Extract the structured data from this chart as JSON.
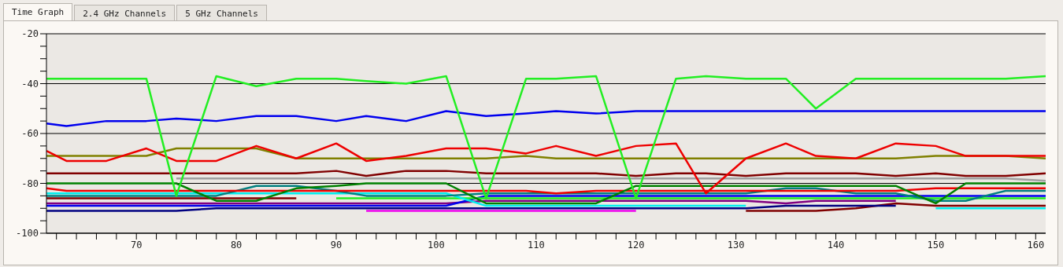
{
  "chart_data": {
    "type": "line",
    "annotations": [
      "Time Graph",
      "2.4 GHz Channels",
      "5 GHz Channels"
    ],
    "x": [
      61,
      63,
      67,
      71,
      74,
      78,
      82,
      86,
      90,
      93,
      97,
      101,
      105,
      109,
      112,
      116,
      120,
      124,
      127,
      131,
      135,
      138,
      142,
      146,
      150,
      153,
      157,
      161
    ],
    "xlim": [
      61,
      161
    ],
    "xticks": [
      {
        "value": 62,
        "label": null
      },
      {
        "value": 64,
        "label": null
      },
      {
        "value": 66,
        "label": null
      },
      {
        "value": 68,
        "label": null
      },
      70,
      {
        "value": 72,
        "label": null
      },
      {
        "value": 74,
        "label": null
      },
      {
        "value": 76,
        "label": null
      },
      {
        "value": 78,
        "label": null
      },
      80,
      {
        "value": 82,
        "label": null
      },
      {
        "value": 84,
        "label": null
      },
      {
        "value": 86,
        "label": null
      },
      {
        "value": 88,
        "label": null
      },
      90,
      {
        "value": 92,
        "label": null
      },
      {
        "value": 94,
        "label": null
      },
      {
        "value": 96,
        "label": null
      },
      {
        "value": 98,
        "label": null
      },
      100,
      {
        "value": 102,
        "label": null
      },
      {
        "value": 104,
        "label": null
      },
      {
        "value": 106,
        "label": null
      },
      {
        "value": 108,
        "label": null
      },
      110,
      {
        "value": 112,
        "label": null
      },
      {
        "value": 114,
        "label": null
      },
      {
        "value": 116,
        "label": null
      },
      {
        "value": 118,
        "label": null
      },
      120,
      {
        "value": 122,
        "label": null
      },
      {
        "value": 124,
        "label": null
      },
      {
        "value": 126,
        "label": null
      },
      {
        "value": 128,
        "label": null
      },
      130,
      {
        "value": 132,
        "label": null
      },
      {
        "value": 134,
        "label": null
      },
      {
        "value": 136,
        "label": null
      },
      {
        "value": 138,
        "label": null
      },
      140,
      {
        "value": 142,
        "label": null
      },
      {
        "value": 144,
        "label": null
      },
      {
        "value": 146,
        "label": null
      },
      {
        "value": 148,
        "label": null
      },
      150,
      {
        "value": 152,
        "label": null
      },
      {
        "value": 154,
        "label": null
      },
      {
        "value": 156,
        "label": null
      },
      {
        "value": 158,
        "label": null
      },
      160
    ],
    "ylim": [
      -100,
      -20
    ],
    "yticks": [
      -100,
      {
        "value": -95,
        "label": null
      },
      {
        "value": -90,
        "label": null
      },
      {
        "value": -85,
        "label": null
      },
      -80,
      {
        "value": -75,
        "label": null
      },
      {
        "value": -70,
        "label": null
      },
      {
        "value": -65,
        "label": null
      },
      -60,
      {
        "value": -55,
        "label": null
      },
      {
        "value": -50,
        "label": null
      },
      {
        "value": -45,
        "label": null
      },
      -40,
      {
        "value": -35,
        "label": null
      },
      {
        "value": -30,
        "label": null
      },
      {
        "value": -25,
        "label": null
      },
      -20
    ],
    "grid": "y",
    "series": [
      {
        "color": "#800000",
        "values": [
          -86,
          -86,
          -86,
          -86,
          -86,
          -86,
          -86,
          -86,
          null,
          null,
          null,
          null,
          null,
          null,
          null,
          null,
          null,
          null,
          null,
          -91,
          -91,
          -91,
          -90,
          -88,
          -89,
          -89,
          -89,
          -89
        ]
      },
      {
        "color": "#000080",
        "values": [
          -91,
          -91,
          -91,
          -91,
          -91,
          -90,
          -90,
          -90,
          -90,
          -90,
          -90,
          -90,
          -90,
          -90,
          -90,
          -90,
          -90,
          -90,
          -90,
          -90,
          -89,
          -89,
          -89,
          -89,
          null,
          null,
          null,
          null
        ]
      },
      {
        "color": "#ee00ee",
        "values": [
          null,
          null,
          null,
          null,
          null,
          null,
          null,
          null,
          null,
          -91,
          -91,
          -91,
          -91,
          -91,
          -91,
          -91,
          -91,
          null,
          null,
          null,
          null,
          null,
          null,
          null,
          null,
          null,
          null,
          null
        ]
      },
      {
        "color": "#800080",
        "values": [
          -88,
          -88,
          -88,
          -88,
          -88,
          -88,
          -88,
          -88,
          -88,
          -88,
          -88,
          -88,
          -87,
          -87,
          -87,
          -87,
          -87,
          -87,
          -87,
          -87,
          -88,
          -87,
          -87,
          -87,
          null,
          null,
          null,
          null
        ]
      },
      {
        "color": "#0000ee",
        "values": [
          -89,
          -89,
          -89,
          -89,
          -89,
          -89,
          -89,
          -89,
          -89,
          -89,
          -89,
          -89,
          -85,
          -85,
          -85,
          -85,
          -85,
          -85,
          -85,
          -85,
          -85,
          -85,
          -85,
          -85,
          -85,
          -85,
          -85,
          -85
        ]
      },
      {
        "color": "#22ee22",
        "values": [
          null,
          null,
          null,
          null,
          null,
          null,
          null,
          null,
          -86,
          -86,
          -86,
          -86,
          -86,
          -86,
          -86,
          -86,
          -86,
          -86,
          -86,
          -86,
          -86,
          -86,
          -86,
          -86,
          -86,
          -86,
          -86,
          -86
        ]
      },
      {
        "color": "#00eeee",
        "values": [
          -84,
          -84,
          -84,
          -84,
          -84,
          -84,
          -84,
          -84,
          -84,
          -84,
          -84,
          -84,
          -89,
          -89,
          -89,
          -89,
          -89,
          -89,
          -89,
          -89,
          null,
          null,
          null,
          null,
          -90,
          -90,
          -90,
          -90
        ]
      },
      {
        "color": "#008080",
        "values": [
          -85,
          -85,
          -85,
          -85,
          -85,
          -85,
          -81,
          -81,
          -83,
          -85,
          -85,
          -85,
          -84,
          -84,
          -84,
          -84,
          -84,
          -84,
          -84,
          -84,
          -82,
          -82,
          -84,
          -84,
          -87,
          -87,
          -83,
          -83
        ]
      },
      {
        "color": "#ee0000",
        "values": [
          -82,
          -83,
          -83,
          -83,
          -83,
          -83,
          -83,
          -83,
          -83,
          -83,
          -83,
          -83,
          -83,
          -83,
          -84,
          -83,
          -83,
          -83,
          -83,
          -83,
          -83,
          -83,
          -83,
          -83,
          -82,
          -82,
          -82,
          -82
        ]
      },
      {
        "color": "#a0a0a0",
        "values": [
          null,
          null,
          null,
          null,
          -78,
          -78,
          -78,
          -78,
          -78,
          -78,
          -78,
          -78,
          -78,
          -78,
          -78,
          -78,
          -78,
          -78,
          -78,
          -78,
          -78,
          -78,
          -78,
          -78,
          -78,
          -78,
          -78,
          -79
        ]
      },
      {
        "color": "#008000",
        "values": [
          -80,
          -80,
          -80,
          -80,
          -80,
          -87,
          -87,
          -82,
          -81,
          -80,
          -80,
          -80,
          -88,
          -88,
          -88,
          -88,
          -81,
          -81,
          -81,
          -81,
          -81,
          -81,
          -81,
          -81,
          -88,
          -80,
          -80,
          -80
        ]
      },
      {
        "color": "#800000",
        "values": [
          -76,
          -76,
          -76,
          -76,
          -76,
          -76,
          -76,
          -76,
          -75,
          -77,
          -75,
          -75,
          -76,
          -76,
          -76,
          -76,
          -77,
          -76,
          -76,
          -77,
          -76,
          -76,
          -76,
          -77,
          -76,
          -77,
          -77,
          -76
        ]
      },
      {
        "color": "#808000",
        "values": [
          -69,
          -69,
          -69,
          -69,
          -66,
          -66,
          -66,
          -70,
          -70,
          -70,
          -70,
          -70,
          -70,
          -69,
          -70,
          -70,
          -70,
          -70,
          -70,
          -70,
          -70,
          -70,
          -70,
          -70,
          -69,
          -69,
          -69,
          -70
        ]
      },
      {
        "color": "#ee0000",
        "values": [
          -67,
          -71,
          -71,
          -66,
          -71,
          -71,
          -65,
          -70,
          -64,
          -71,
          -69,
          -66,
          -66,
          -68,
          -65,
          -69,
          -65,
          -64,
          -84,
          -70,
          -64,
          -69,
          -70,
          -64,
          -65,
          -69,
          -69,
          -69
        ]
      },
      {
        "color": "#0000ee",
        "values": [
          -56,
          -57,
          -55,
          -55,
          -54,
          -55,
          -53,
          -53,
          -55,
          -53,
          -55,
          -51,
          -53,
          -52,
          -51,
          -52,
          -51,
          -51,
          -51,
          -51,
          -51,
          -51,
          -51,
          -51,
          -51,
          -51,
          -51,
          -51
        ]
      },
      {
        "color": "#22ee22",
        "values": [
          -38,
          -38,
          -38,
          -38,
          -85,
          -37,
          -41,
          -38,
          -38,
          -39,
          -40,
          -37,
          -86,
          -38,
          -38,
          -37,
          -86,
          -38,
          -37,
          -38,
          -38,
          -50,
          -38,
          -38,
          -38,
          -38,
          -38,
          -37
        ]
      }
    ]
  }
}
